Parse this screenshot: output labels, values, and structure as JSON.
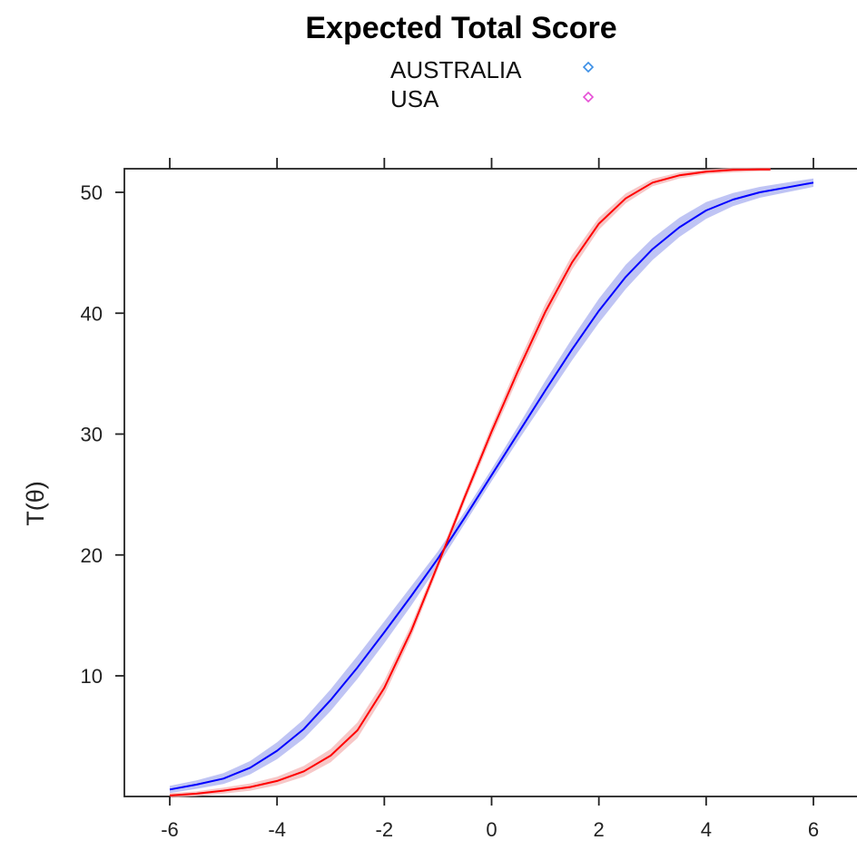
{
  "chart_data": {
    "type": "line",
    "title": "Expected Total Score",
    "xlabel": "",
    "ylabel": "T(θ)",
    "xlim": [
      -6,
      6
    ],
    "ylim": [
      0,
      52
    ],
    "x_ticks": [
      -6,
      -4,
      -2,
      0,
      2,
      4,
      6
    ],
    "y_ticks": [
      10,
      20,
      30,
      40,
      50
    ],
    "grid": false,
    "legend_position": "top",
    "legend": [
      {
        "name": "AUSTRALIA",
        "marker_color": "#3a8ee6",
        "marker": "diamond"
      },
      {
        "name": "USA",
        "marker_color": "#e64fd6",
        "marker": "diamond"
      }
    ],
    "series": [
      {
        "name": "AUSTRALIA",
        "color": "#0000ff",
        "band_color": "#aab0f0",
        "x": [
          -6,
          -5.5,
          -5,
          -4.5,
          -4,
          -3.5,
          -3,
          -2.5,
          -2,
          -1.5,
          -1,
          -0.5,
          0,
          0.5,
          1,
          1.5,
          2,
          2.5,
          3,
          3.5,
          4,
          4.5,
          5,
          5.5,
          6
        ],
        "y": [
          0.6,
          1.0,
          1.5,
          2.4,
          3.8,
          5.6,
          8.0,
          10.7,
          13.6,
          16.6,
          19.7,
          23.1,
          26.6,
          30.1,
          33.6,
          37.0,
          40.2,
          43.0,
          45.3,
          47.1,
          48.5,
          49.4,
          50.0,
          50.4,
          50.8
        ],
        "band_halfwidth": [
          0.3,
          0.35,
          0.45,
          0.55,
          0.7,
          0.8,
          0.9,
          0.95,
          0.9,
          0.8,
          0.6,
          0.5,
          0.5,
          0.6,
          0.8,
          0.9,
          1.0,
          1.0,
          0.9,
          0.8,
          0.7,
          0.55,
          0.45,
          0.4,
          0.35
        ]
      },
      {
        "name": "USA",
        "color": "#ff0000",
        "band_color": "#f4b4b4",
        "x": [
          -6,
          -5.5,
          -5,
          -4.5,
          -4,
          -3.5,
          -3,
          -2.5,
          -2,
          -1.5,
          -1,
          -0.5,
          0,
          0.5,
          1,
          1.5,
          2,
          2.5,
          3,
          3.5,
          4,
          4.5,
          5,
          5.2
        ],
        "y": [
          0.1,
          0.25,
          0.5,
          0.8,
          1.3,
          2.1,
          3.4,
          5.5,
          9.0,
          13.7,
          19.2,
          24.8,
          30.2,
          35.3,
          40.1,
          44.2,
          47.4,
          49.5,
          50.8,
          51.4,
          51.7,
          51.85,
          51.9,
          51.9
        ],
        "band_halfwidth": [
          0.2,
          0.2,
          0.25,
          0.3,
          0.35,
          0.45,
          0.55,
          0.65,
          0.6,
          0.5,
          0.4,
          0.4,
          0.5,
          0.6,
          0.65,
          0.6,
          0.5,
          0.4,
          0.3,
          0.25,
          0.2,
          0.2,
          0.15,
          0.15
        ]
      }
    ]
  }
}
